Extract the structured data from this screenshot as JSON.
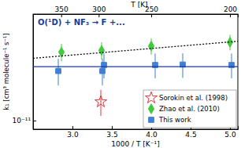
{
  "chart_data": {
    "type": "scatter",
    "title": "O(¹D) + NF₃ → F +...",
    "x_label": "1000 / T [K⁻¹]",
    "y_label": "k₁ [cm³ molecule⁻¹ s⁻¹]",
    "x2_label": "T [K]",
    "log": "y",
    "grid": false,
    "legend": "lower right",
    "xlim": [
      2.5,
      5.1
    ],
    "xticks": [
      {
        "value": 3,
        "label": "3.0"
      },
      3.5,
      {
        "value": 4,
        "label": "4.0"
      },
      4.5,
      {
        "value": 5,
        "label": "5.0"
      }
    ],
    "x2ticks": [
      350,
      300,
      250,
      200
    ],
    "ylim": [
      9e-12,
      3.7e-11
    ],
    "yticks": [
      {
        "value": 1e-11,
        "label": "10⁻¹¹"
      }
    ],
    "series": [
      {
        "name": "Sorokin et al. (1998)",
        "type": "scatter",
        "marker": "star",
        "color": "#e8343c",
        "x": [
          3.36
        ],
        "values": [
          1.26e-11
        ],
        "errors": [
          2e-12
        ]
      },
      {
        "name": "Zhao et al. (2010)",
        "type": "scatter",
        "marker": "diamond",
        "color": "#3fcc3a",
        "x": [
          2.86,
          3.37,
          4.0,
          5.0
        ],
        "values": [
          2.32e-11,
          2.37e-11,
          2.5e-11,
          2.62e-11
        ],
        "errors": [
          2.5e-12,
          2.5e-12,
          2.5e-12,
          2.5e-12
        ]
      },
      {
        "name": "This work",
        "type": "scatter",
        "marker": "square",
        "color": "#3f7fd6",
        "x": [
          2.82,
          3.38,
          3.4,
          4.05,
          4.4,
          5.02
        ],
        "values": [
          1.84e-11,
          1.84e-11,
          1.98e-11,
          1.98e-11,
          1.99e-11,
          1.98e-11
        ],
        "errors": [
          3e-12,
          3e-12,
          3e-12,
          3e-12,
          3e-12,
          3e-12
        ]
      },
      {
        "type": "line",
        "line_style": "dotted",
        "color": "#000000",
        "x": [
          2.5,
          5.1
        ],
        "values": [
          2.15e-11,
          2.65e-11
        ]
      },
      {
        "type": "line",
        "line_style": "solid",
        "color": "#1a3a9a",
        "x": [
          2.5,
          5.1
        ],
        "values": [
          1.94e-11,
          1.94e-11
        ]
      }
    ]
  }
}
